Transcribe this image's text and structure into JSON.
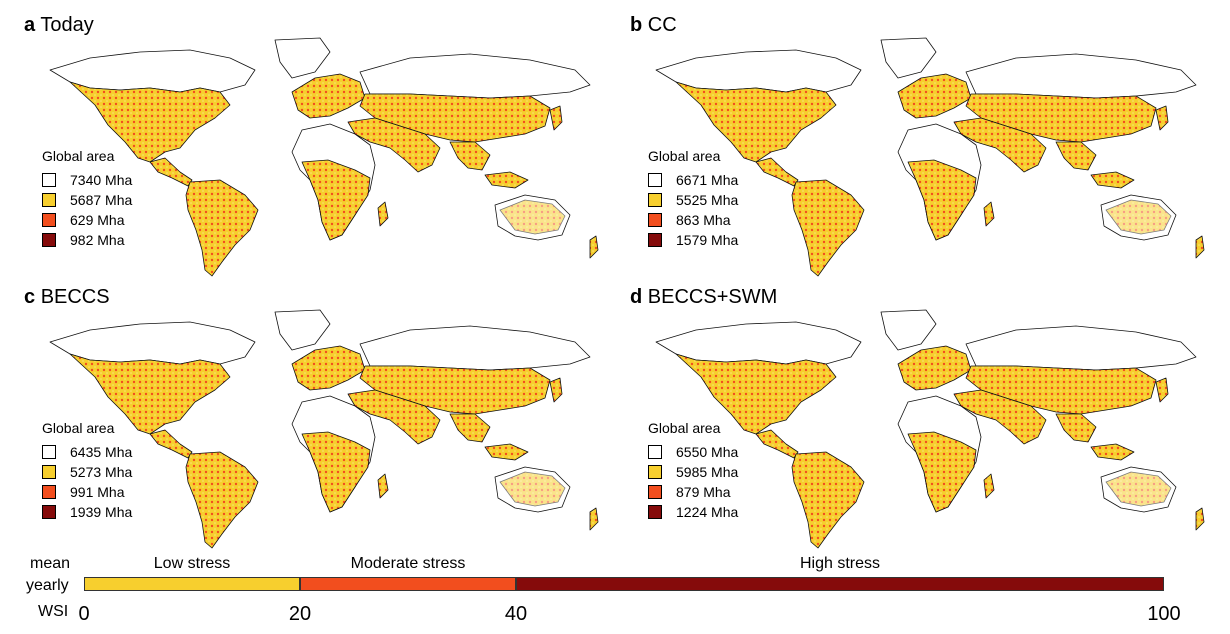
{
  "panels": [
    {
      "letter": "a",
      "title": "Today",
      "legend_title": "Global area",
      "items": [
        "7340 Mha",
        "5687 Mha",
        "629 Mha",
        "982 Mha"
      ]
    },
    {
      "letter": "b",
      "title": "CC",
      "legend_title": "Global area",
      "items": [
        "6671 Mha",
        "5525 Mha",
        "863 Mha",
        "1579 Mha"
      ]
    },
    {
      "letter": "c",
      "title": "BECCS",
      "legend_title": "Global area",
      "items": [
        "6435 Mha",
        "5273 Mha",
        "991 Mha",
        "1939 Mha"
      ]
    },
    {
      "letter": "d",
      "title": "BECCS+SWM",
      "legend_title": "Global area",
      "items": [
        "6550 Mha",
        "5985 Mha",
        "879 Mha",
        "1224 Mha"
      ]
    }
  ],
  "colors": {
    "none": "#ffffff",
    "low": "#f7cf2e",
    "moderate": "#f24e1e",
    "high": "#850b0b",
    "border": "#111111"
  },
  "scale": {
    "label_lines": [
      "mean",
      "yearly",
      "WSI"
    ],
    "segments": [
      {
        "label": "Low stress",
        "from": 0,
        "to": 20,
        "color": "#f7cf2e"
      },
      {
        "label": "Moderate stress",
        "from": 20,
        "to": 40,
        "color": "#f24e1e"
      },
      {
        "label": "High stress",
        "from": 40,
        "to": 100,
        "color": "#850b0b"
      }
    ],
    "ticks": [
      "0",
      "20",
      "40",
      "100"
    ],
    "tick_values": [
      0,
      20,
      40,
      100
    ]
  }
}
